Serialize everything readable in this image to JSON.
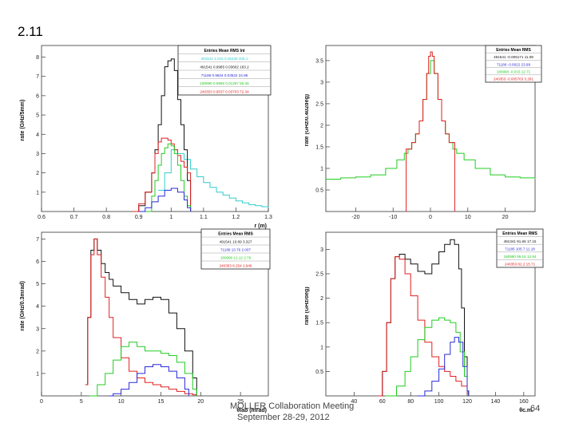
{
  "slide": {
    "section": "2.11",
    "footer_line1": "MOLLER Collaboration Meeting",
    "footer_line2": "September 28-29, 2012",
    "page_number": "64"
  },
  "colors": {
    "black": "#111111",
    "blue": "#2a2ad8",
    "red": "#e02020",
    "green": "#22cc22",
    "cyan": "#33cccc"
  },
  "chart_data": [
    {
      "type": "line",
      "title": "",
      "xlabel": "r (m)",
      "ylabel": "rate (GHz/5mm)",
      "xlim": [
        0.6,
        1.3
      ],
      "ylim": [
        0,
        8.6
      ],
      "xticks": [
        "0.6",
        "0.7",
        "0.8",
        "0.9",
        "1",
        "1.1",
        "1.2",
        "1.3"
      ],
      "xtick_values": [
        0.6,
        0.7,
        0.8,
        0.9,
        1.0,
        1.1,
        1.2,
        1.3
      ],
      "yticks": [
        "1",
        "2",
        "3",
        "4",
        "5",
        "6",
        "7",
        "8"
      ],
      "ytick_values": [
        1,
        2,
        3,
        4,
        5,
        6,
        7,
        8
      ],
      "stats_header": "Entries  Mean  RMS  Int",
      "stats": [
        {
          "text": "491541  1.015  0.05428  205.1",
          "color": "cyan"
        },
        {
          "text": "491541  0.9985  0.03602  163.2",
          "color": "black"
        },
        {
          "text": "71186  0.9834  0.03522  24.98",
          "color": "blue"
        },
        {
          "text": "180990  0.9965  0.01257  55.45",
          "color": "green"
        },
        {
          "text": "240353  0.9537  0.03703  72.34",
          "color": "red"
        }
      ],
      "series": [
        {
          "name": "all (cyan)",
          "color": "cyan",
          "x": [
            0.96,
            0.98,
            1.0,
            1.02,
            1.04,
            1.06,
            1.08,
            1.1,
            1.12,
            1.14,
            1.16,
            1.18,
            1.2,
            1.22,
            1.24,
            1.26,
            1.28,
            1.3
          ],
          "y": [
            1.1,
            2.0,
            3.2,
            3.0,
            2.7,
            2.2,
            1.8,
            1.5,
            1.25,
            1.0,
            0.85,
            0.7,
            0.55,
            0.45,
            0.35,
            0.3,
            0.25,
            0.2
          ]
        },
        {
          "name": "total (black)",
          "color": "black",
          "x": [
            0.88,
            0.9,
            0.92,
            0.94,
            0.95,
            0.96,
            0.97,
            0.98,
            0.99,
            1.0,
            1.01,
            1.02,
            1.03,
            1.04,
            1.05,
            1.06
          ],
          "y": [
            0.0,
            0.3,
            1.0,
            2.0,
            3.2,
            4.5,
            6.0,
            7.5,
            7.8,
            7.9,
            7.3,
            5.8,
            4.5,
            3.2,
            1.6,
            0.0
          ]
        },
        {
          "name": "red",
          "color": "red",
          "x": [
            0.88,
            0.9,
            0.92,
            0.94,
            0.95,
            0.96,
            0.97,
            0.98,
            0.99,
            1.0,
            1.01,
            1.02,
            1.03,
            1.04,
            1.05,
            1.06
          ],
          "y": [
            0.0,
            0.4,
            1.0,
            2.0,
            3.0,
            3.6,
            3.8,
            3.8,
            3.7,
            3.5,
            3.2,
            2.9,
            2.6,
            2.3,
            2.0,
            0.0
          ]
        },
        {
          "name": "green",
          "color": "green",
          "x": [
            0.92,
            0.94,
            0.95,
            0.96,
            0.97,
            0.98,
            0.99,
            1.0,
            1.01,
            1.02,
            1.03,
            1.04,
            1.05,
            1.06
          ],
          "y": [
            0.0,
            0.8,
            1.6,
            2.4,
            3.0,
            3.3,
            3.5,
            3.4,
            3.0,
            2.4,
            1.6,
            0.8,
            0.3,
            0.0
          ]
        },
        {
          "name": "blue",
          "color": "blue",
          "x": [
            0.9,
            0.92,
            0.94,
            0.96,
            0.98,
            1.0,
            1.02,
            1.04,
            1.05,
            1.06
          ],
          "y": [
            0.0,
            0.2,
            0.5,
            0.8,
            1.1,
            1.2,
            1.0,
            0.6,
            0.2,
            0.0
          ]
        }
      ]
    },
    {
      "type": "line",
      "title": "",
      "xlabel": "",
      "ylabel": "rate (GHz/0.402deg)",
      "xlim": [
        -28,
        28
      ],
      "ylim": [
        0,
        3.85
      ],
      "xticks": [
        "-20",
        "-10",
        "0",
        "10",
        "20"
      ],
      "xtick_values": [
        -20,
        -10,
        0,
        10,
        20
      ],
      "yticks": [
        "0.5",
        "1",
        "1.5",
        "2",
        "2.5",
        "3",
        "3.5"
      ],
      "ytick_values": [
        0.5,
        1,
        1.5,
        2,
        2.5,
        3,
        3.5
      ],
      "stats_header": "Entries  Mean  RMS",
      "stats": [
        {
          "text": "491541  -0.005171  11.09",
          "color": "black"
        },
        {
          "text": "71186  -0.0022  23.99",
          "color": "blue"
        },
        {
          "text": "180990  -0.015  12.71",
          "color": "green"
        },
        {
          "text": "240353  -0.005763  3.281",
          "color": "red"
        }
      ],
      "series": [
        {
          "name": "green",
          "color": "green",
          "x": [
            -28,
            -24,
            -20,
            -16,
            -12,
            -9,
            -7,
            -6,
            -5,
            -4,
            -3,
            -2,
            -1,
            0,
            1,
            2,
            3,
            4,
            5,
            6,
            7,
            9,
            12,
            16,
            20,
            24,
            28
          ],
          "y": [
            0.75,
            0.78,
            0.8,
            0.85,
            1.0,
            1.2,
            1.35,
            1.45,
            1.6,
            1.8,
            2.1,
            2.6,
            3.2,
            3.5,
            3.2,
            2.6,
            2.1,
            1.8,
            1.6,
            1.45,
            1.35,
            1.2,
            1.0,
            0.85,
            0.8,
            0.78,
            0.75
          ]
        },
        {
          "name": "red",
          "color": "red",
          "x": [
            -6.5,
            -6.5,
            -5,
            -4,
            -3,
            -2,
            -1,
            -0.5,
            0,
            0.5,
            1,
            2,
            3,
            4,
            5,
            6.5,
            6.5
          ],
          "y": [
            0.0,
            1.45,
            1.6,
            1.8,
            2.1,
            2.6,
            3.2,
            3.6,
            3.7,
            3.6,
            3.2,
            2.6,
            2.1,
            1.8,
            1.6,
            1.45,
            0.0
          ]
        }
      ]
    },
    {
      "type": "line",
      "title": "",
      "xlabel": "θlab (mrad)",
      "ylabel": "rate (GHz/0.3mrad)",
      "xlim": [
        0,
        28.5
      ],
      "ylim": [
        0,
        7.3
      ],
      "xticks": [
        "0",
        "5",
        "10",
        "15",
        "20",
        "25"
      ],
      "xtick_values": [
        0,
        5,
        10,
        15,
        20,
        25
      ],
      "yticks": [
        "1",
        "2",
        "3",
        "4",
        "5",
        "6",
        "7"
      ],
      "ytick_values": [
        1,
        2,
        3,
        4,
        5,
        6,
        7
      ],
      "stats_header": "Entries  Mean  RMS",
      "stats": [
        {
          "text": "491541  10.89  3.327",
          "color": "black"
        },
        {
          "text": "71189  13.76  2.007",
          "color": "blue"
        },
        {
          "text": "180990  12.12  2.79",
          "color": "green"
        },
        {
          "text": "240353  8.254  2.946",
          "color": "red"
        }
      ],
      "series": [
        {
          "name": "total (black)",
          "color": "black",
          "x": [
            5.5,
            5.8,
            6.2,
            6.6,
            7.0,
            7.5,
            8.0,
            8.5,
            9.0,
            10,
            11,
            12,
            13,
            14,
            15,
            16,
            17,
            18,
            19,
            19.5
          ],
          "y": [
            0.5,
            3.5,
            6.5,
            7.0,
            6.5,
            5.9,
            5.5,
            5.2,
            4.9,
            4.6,
            4.3,
            4.1,
            4.3,
            4.4,
            4.3,
            3.7,
            3.0,
            2.0,
            0.8,
            0.0
          ]
        },
        {
          "name": "red",
          "color": "red",
          "x": [
            5.5,
            5.8,
            6.2,
            6.6,
            7.0,
            7.5,
            8.0,
            8.5,
            9.0,
            10,
            11,
            12,
            13,
            14,
            15,
            16,
            17,
            18,
            19,
            19.5
          ],
          "y": [
            0.5,
            3.5,
            6.3,
            7.0,
            6.3,
            5.3,
            4.4,
            3.5,
            2.6,
            1.7,
            1.1,
            0.8,
            0.6,
            0.5,
            0.4,
            0.3,
            0.2,
            0.1,
            0.05,
            0.0
          ]
        },
        {
          "name": "green",
          "color": "green",
          "x": [
            6.0,
            7,
            8,
            9,
            10,
            11,
            12,
            13,
            14,
            15,
            16,
            17,
            18,
            19,
            19.5
          ],
          "y": [
            0.0,
            0.5,
            1.0,
            1.6,
            2.2,
            2.4,
            2.2,
            2.0,
            2.0,
            1.9,
            1.8,
            1.5,
            1.0,
            0.3,
            0.0
          ]
        },
        {
          "name": "blue",
          "color": "blue",
          "x": [
            8.5,
            9,
            10,
            11,
            12,
            13,
            14,
            15,
            16,
            17,
            18,
            18.5
          ],
          "y": [
            0.0,
            0.1,
            0.3,
            0.6,
            1.0,
            1.3,
            1.4,
            1.3,
            1.1,
            0.8,
            0.3,
            0.0
          ]
        }
      ]
    },
    {
      "type": "line",
      "title": "",
      "xlabel": "θc.m.",
      "ylabel": "rate (GHz/deg)",
      "xlim": [
        20,
        168
      ],
      "ylim": [
        0,
        3.35
      ],
      "xticks": [
        "40",
        "60",
        "80",
        "100",
        "120",
        "140",
        "160"
      ],
      "xtick_values": [
        40,
        60,
        80,
        100,
        120,
        140,
        160
      ],
      "yticks": [
        "0.5",
        "1",
        "1.5",
        "2",
        "2.5",
        "3"
      ],
      "ytick_values": [
        0.5,
        1,
        1.5,
        2,
        2.5,
        3
      ],
      "stats_header": "Entries  Mean  RMS",
      "stats": [
        {
          "text": "491341  91.66  17.15",
          "color": "black"
        },
        {
          "text": "71185  105.7  11.18",
          "color": "blue"
        },
        {
          "text": "180990  95.15  12.54",
          "color": "green"
        },
        {
          "text": "240353  82.2  15.71",
          "color": "red"
        }
      ],
      "series": [
        {
          "name": "total (black)",
          "color": "black",
          "x": [
            57,
            60,
            63,
            66,
            69,
            72,
            76,
            80,
            85,
            90,
            95,
            100,
            104,
            108,
            111,
            114,
            116,
            118,
            120,
            121
          ],
          "y": [
            0.0,
            0.5,
            1.5,
            2.4,
            2.85,
            2.9,
            2.8,
            2.7,
            2.55,
            2.5,
            2.7,
            2.95,
            3.1,
            3.2,
            3.1,
            2.6,
            1.8,
            0.8,
            0.1,
            0.0
          ]
        },
        {
          "name": "red",
          "color": "red",
          "x": [
            57,
            60,
            63,
            66,
            69,
            72,
            76,
            80,
            85,
            90,
            95,
            100,
            104,
            108,
            112,
            116,
            120,
            121
          ],
          "y": [
            0.0,
            0.5,
            1.5,
            2.4,
            2.85,
            2.8,
            2.5,
            2.05,
            1.55,
            1.1,
            0.8,
            0.6,
            0.5,
            0.4,
            0.3,
            0.2,
            0.05,
            0.0
          ]
        },
        {
          "name": "green",
          "color": "green",
          "x": [
            62,
            70,
            76,
            80,
            85,
            90,
            95,
            100,
            104,
            108,
            112,
            115,
            118,
            120,
            121
          ],
          "y": [
            0.0,
            0.2,
            0.5,
            0.8,
            1.15,
            1.4,
            1.55,
            1.6,
            1.55,
            1.5,
            1.3,
            0.9,
            0.4,
            0.1,
            0.0
          ]
        },
        {
          "name": "blue",
          "color": "blue",
          "x": [
            85,
            90,
            95,
            100,
            104,
            108,
            111,
            114,
            117,
            120,
            121
          ],
          "y": [
            0.0,
            0.1,
            0.3,
            0.55,
            0.85,
            1.1,
            1.2,
            1.1,
            0.6,
            0.1,
            0.0
          ]
        }
      ]
    }
  ]
}
